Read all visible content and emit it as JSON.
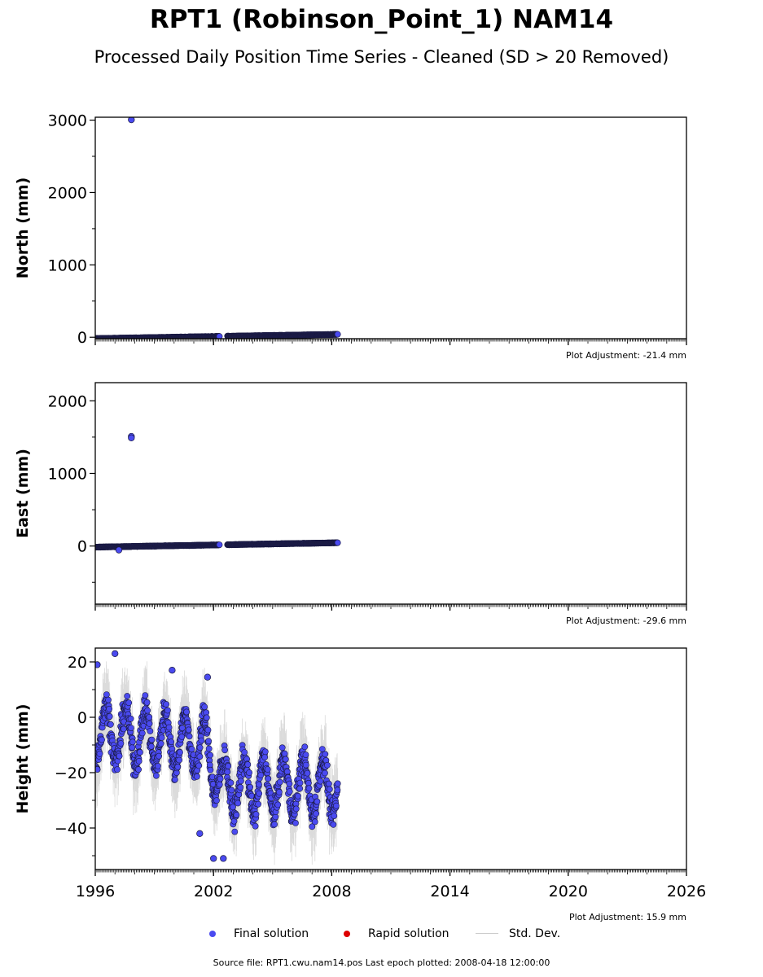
{
  "title": "RPT1 (Robinson_Point_1) NAM14",
  "subtitle": "Processed Daily Position Time Series - Cleaned (SD > 20 Removed)",
  "colors": {
    "final": "#4a4af0",
    "rapid": "#dd0000",
    "stddev": "#cccccc",
    "marker_edge": "#1a1a40"
  },
  "legend": {
    "final": "Final solution",
    "rapid": "Rapid solution",
    "stddev": "Std. Dev."
  },
  "source": "Source file: RPT1.cwu.nam14.pos  Last epoch plotted: 2008-04-18 12:00:00",
  "chart_data": [
    {
      "type": "scatter",
      "ylabel": "North (mm)",
      "adjustment": "Plot Adjustment: -21.4 mm",
      "xlim": [
        1996,
        2026
      ],
      "ylim": [
        -20,
        3040
      ],
      "yticks": [
        0,
        1000,
        2000,
        3000
      ],
      "xticks": [],
      "outliers": [
        [
          1997.83,
          3005
        ]
      ],
      "trend": {
        "x": [
          1996.0,
          2008.3
        ],
        "y": [
          -18,
          40
        ]
      },
      "gap": [
        2002.3,
        2002.7
      ],
      "std_scale": 3
    },
    {
      "type": "scatter",
      "ylabel": "East (mm)",
      "adjustment": "Plot Adjustment: -29.6 mm",
      "xlim": [
        1996,
        2026
      ],
      "ylim": [
        -800,
        2250
      ],
      "yticks": [
        0,
        1000,
        2000
      ],
      "xticks": [],
      "outliers": [
        [
          1997.83,
          1510
        ],
        [
          1997.83,
          1490
        ],
        [
          1997.2,
          -55
        ]
      ],
      "trend": {
        "x": [
          1996.0,
          2008.3
        ],
        "y": [
          -15,
          45
        ]
      },
      "gap": [
        2002.3,
        2002.7
      ],
      "std_scale": 5
    },
    {
      "type": "scatter",
      "ylabel": "Height (mm)",
      "adjustment": "Plot Adjustment: 15.9 mm",
      "xlim": [
        1996,
        2026
      ],
      "ylim": [
        -55,
        25
      ],
      "yticks": [
        20,
        0,
        -20,
        -40
      ],
      "xticks": [
        "1996",
        "2002",
        "2008",
        "2014",
        "2020",
        "2026"
      ],
      "seasonal": {
        "x_start": 1996.0,
        "x_end": 2008.3,
        "amplitude": 10,
        "trend": [
          [
            1996.0,
            -5
          ],
          [
            2001.5,
            -10
          ],
          [
            2002.5,
            -25
          ],
          [
            2008.3,
            -25
          ]
        ],
        "noise": 6
      },
      "outliers": [
        [
          1996.1,
          19
        ],
        [
          1997.0,
          23
        ],
        [
          2001.7,
          14.5
        ],
        [
          2002.0,
          -51
        ],
        [
          2002.5,
          -51
        ],
        [
          2001.3,
          -42
        ],
        [
          1999.9,
          17
        ]
      ],
      "std_scale": 10
    }
  ]
}
